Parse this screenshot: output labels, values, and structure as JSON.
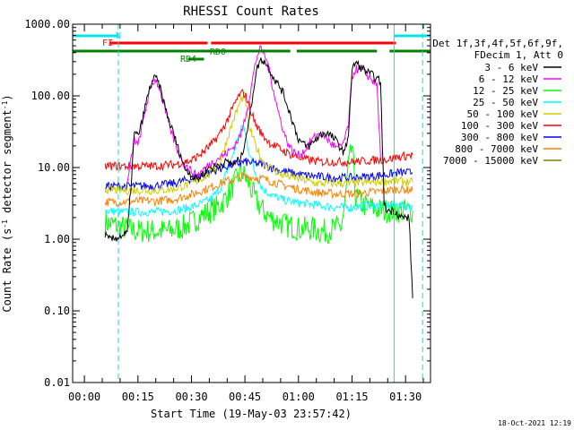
{
  "chart_data": {
    "type": "line",
    "title": "RHESSI Count Rates",
    "xlabel": "Start Time (19-May-03 23:57:42)",
    "ylabel_parts": [
      "Count Rate (s",
      "-1",
      " detector segment",
      "-1",
      ")"
    ],
    "yscale": "log",
    "ylim": [
      0.01,
      1000
    ],
    "y_tick_labels": [
      "0.01",
      "0.10",
      "1.00",
      "10.00",
      "100.00",
      "1000.00"
    ],
    "y_tick_values": [
      0.01,
      0.1,
      1,
      10,
      100,
      1000
    ],
    "xlim_minutes": [
      -3.3,
      97
    ],
    "x_tick_labels": [
      "00:00",
      "00:15",
      "00:30",
      "00:45",
      "01:00",
      "01:15",
      "01:30"
    ],
    "x_tick_minutes": [
      0,
      15,
      30,
      45,
      60,
      75,
      90
    ],
    "legend_header": [
      "Det 1f,3f,4f,5f,6f,9f,",
      "FDecim 1, Att 0"
    ],
    "legend_placement": "right",
    "timestamp": "18-Oct-2021 12:19",
    "flag_bars": [
      {
        "label": "N",
        "color": "#00e6e6",
        "row": 0,
        "segments": [
          [
            -3.3,
            9.5
          ],
          [
            86.8,
            97
          ]
        ]
      },
      {
        "label": "FI",
        "color": "#ff0000",
        "row": 1,
        "segments": [
          [
            7,
            34.5
          ],
          [
            35.5,
            87.3
          ]
        ]
      },
      {
        "label": "RD0",
        "color": "#008000",
        "row": 2,
        "segments": [
          [
            -3.3,
            36
          ],
          [
            36,
            57.7
          ],
          [
            59.5,
            82
          ],
          [
            85.5,
            97
          ]
        ]
      },
      {
        "label": "RD4",
        "color": "#008000",
        "row": 3,
        "segments": [
          [
            29,
            33.5
          ]
        ]
      }
    ],
    "vertical_lines": [
      {
        "minute": 9.5,
        "color": "#00e6e6",
        "style": "dashed"
      },
      {
        "minute": 86.8,
        "color": "#00e6e6",
        "style": "solid"
      },
      {
        "minute": 94.8,
        "color": "#00e6e6",
        "style": "dashed"
      }
    ],
    "series": [
      {
        "name": "3 - 6 keV",
        "color": "#000000",
        "x": [
          5.8,
          6.5,
          8,
          10,
          12,
          13,
          14,
          15,
          16,
          17,
          18,
          19,
          20,
          21,
          22,
          23,
          24,
          25,
          26,
          27,
          28,
          29,
          30,
          31,
          32,
          33,
          34,
          35,
          36,
          38,
          40,
          42,
          44,
          46,
          48,
          49,
          50,
          51,
          52,
          53,
          54,
          55,
          56,
          57,
          58,
          59,
          60,
          61,
          62,
          63,
          64,
          65,
          66,
          67,
          68,
          69,
          70,
          71,
          72,
          73,
          74,
          75,
          76,
          77,
          78,
          79,
          80,
          81,
          82,
          83,
          84,
          85,
          86,
          87,
          88,
          89,
          90,
          91,
          92
        ],
        "y": [
          1.2,
          1.0,
          1.0,
          1.1,
          1.2,
          5,
          30,
          28,
          40,
          70,
          110,
          160,
          180,
          140,
          90,
          60,
          40,
          30,
          20,
          15,
          10,
          9,
          8,
          7,
          7,
          8,
          9,
          10,
          10,
          11,
          12,
          11,
          14,
          40,
          200,
          300,
          320,
          280,
          230,
          180,
          150,
          130,
          100,
          70,
          50,
          35,
          25,
          22,
          20,
          20,
          22,
          25,
          28,
          30,
          30,
          28,
          25,
          22,
          18,
          16,
          30,
          220,
          300,
          260,
          240,
          220,
          200,
          190,
          170,
          160,
          3,
          2.5,
          2.5,
          2.5,
          2.2,
          2.0,
          2.0,
          2.0,
          0.15
        ]
      },
      {
        "name": "6 - 12 keV",
        "color": "#ff00ff",
        "x": [
          12,
          13,
          14,
          15,
          16,
          17,
          18,
          19,
          20,
          21,
          22,
          23,
          24,
          25,
          26,
          27,
          28,
          29,
          30,
          31,
          32,
          33,
          34,
          35,
          36,
          38,
          40,
          42,
          44,
          46,
          48,
          49,
          50,
          51,
          52,
          53,
          54,
          55,
          56,
          57,
          58,
          59,
          60,
          61,
          62,
          63,
          64,
          65,
          66,
          67,
          68,
          69,
          70,
          71,
          72,
          73,
          74,
          75,
          76,
          77,
          78,
          79,
          80,
          81,
          82,
          83
        ],
        "y": [
          6,
          12,
          25,
          20,
          35,
          60,
          100,
          150,
          170,
          130,
          80,
          55,
          35,
          25,
          18,
          14,
          11,
          10,
          9,
          8,
          8,
          9,
          10,
          11,
          12,
          14,
          16,
          20,
          30,
          80,
          300,
          450,
          420,
          320,
          200,
          120,
          70,
          45,
          30,
          22,
          18,
          16,
          15,
          16,
          18,
          22,
          25,
          28,
          30,
          28,
          25,
          22,
          20,
          18,
          20,
          25,
          40,
          180,
          240,
          230,
          220,
          200,
          180,
          160,
          140,
          14
        ]
      },
      {
        "name": "12 - 25 keV",
        "color": "#00ff00",
        "x": [
          5.8,
          8,
          10,
          12,
          14,
          16,
          18,
          20,
          22,
          24,
          26,
          28,
          30,
          32,
          34,
          36,
          38,
          40,
          42,
          44,
          46,
          48,
          50,
          52,
          54,
          56,
          58,
          60,
          62,
          64,
          66,
          68,
          70,
          72,
          73,
          74,
          75,
          76,
          78,
          80,
          82,
          84,
          86,
          88,
          90,
          92
        ],
        "y": [
          1.7,
          1.6,
          1.5,
          1.4,
          1.3,
          1.3,
          1.3,
          1.3,
          1.3,
          1.3,
          1.4,
          1.5,
          1.7,
          2.0,
          2.3,
          2.6,
          3.0,
          4.0,
          6.0,
          9.0,
          6.0,
          3.5,
          2.5,
          2.0,
          1.8,
          1.6,
          1.5,
          1.4,
          1.4,
          1.4,
          1.3,
          1.3,
          1.4,
          1.5,
          3,
          10,
          20,
          4,
          3,
          2.8,
          2.6,
          2.5,
          2.5,
          2.5,
          2.5,
          2.5
        ]
      },
      {
        "name": "25 - 50 keV",
        "color": "#00ffff",
        "x": [
          5.8,
          10,
          15,
          20,
          25,
          30,
          35,
          38,
          41,
          43,
          44.5,
          46,
          48,
          50,
          53,
          56,
          60,
          65,
          70,
          75,
          80,
          85,
          88,
          92
        ],
        "y": [
          2.5,
          2.4,
          2.4,
          2.4,
          2.5,
          2.8,
          3.5,
          5,
          12,
          25,
          40,
          18,
          8,
          5,
          4,
          3.5,
          3.2,
          3.0,
          2.8,
          2.8,
          2.9,
          3.0,
          3.0,
          2.8
        ]
      },
      {
        "name": "50 - 100 keV",
        "color": "#cccc00",
        "x": [
          5.8,
          10,
          15,
          20,
          25,
          30,
          35,
          38,
          40,
          42,
          44,
          45,
          46,
          48,
          50,
          55,
          60,
          65,
          70,
          75,
          80,
          85,
          88,
          92
        ],
        "y": [
          5,
          4.8,
          4.8,
          4.8,
          5,
          6,
          8,
          12,
          25,
          50,
          90,
          100,
          40,
          20,
          12,
          8,
          7,
          6,
          6,
          6,
          6.2,
          6.5,
          6.5,
          6.2
        ]
      },
      {
        "name": "100 - 300 keV",
        "color": "#ff0000",
        "x": [
          5.8,
          10,
          15,
          20,
          25,
          30,
          33,
          36,
          38,
          40,
          42,
          43,
          44,
          45,
          46,
          47,
          48,
          50,
          52,
          55,
          58,
          62,
          66,
          70,
          75,
          80,
          85,
          88,
          92
        ],
        "y": [
          10.5,
          10.5,
          10.5,
          10.5,
          11,
          12.5,
          16,
          22,
          30,
          45,
          75,
          95,
          110,
          105,
          80,
          55,
          40,
          28,
          22,
          18,
          15,
          13,
          12,
          12,
          12,
          12.5,
          13,
          14,
          15
        ]
      },
      {
        "name": "300 - 800 keV",
        "color": "#0000ff",
        "x": [
          5.8,
          10,
          15,
          20,
          25,
          30,
          35,
          40,
          45,
          50,
          55,
          60,
          65,
          70,
          75,
          80,
          85,
          88,
          92
        ],
        "y": [
          5.5,
          5.5,
          5.5,
          5.6,
          6,
          7,
          8.5,
          10.5,
          12,
          11,
          9,
          8,
          7.5,
          7.2,
          7.2,
          7.5,
          8,
          8.5,
          8.5
        ]
      },
      {
        "name": "800 - 7000 keV",
        "color": "#ff8000",
        "x": [
          5.8,
          10,
          15,
          20,
          25,
          30,
          35,
          40,
          45,
          50,
          55,
          60,
          65,
          70,
          75,
          80,
          85,
          88,
          92
        ],
        "y": [
          3.3,
          3.3,
          3.4,
          3.4,
          3.6,
          4.2,
          5.2,
          6.5,
          7.5,
          7,
          5.8,
          5,
          4.5,
          4.3,
          4.3,
          4.5,
          4.8,
          5,
          4.8
        ]
      },
      {
        "name": "7000 - 15000 keV",
        "color": "#808000",
        "x": [],
        "y": []
      }
    ]
  }
}
